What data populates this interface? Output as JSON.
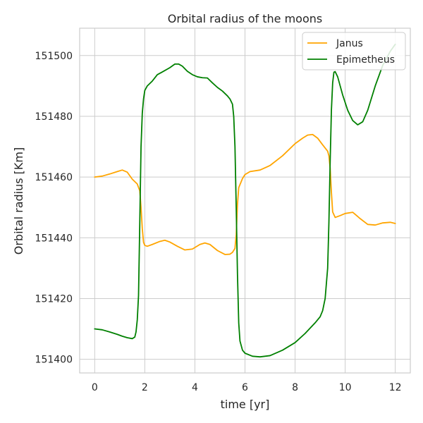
{
  "chart_data": {
    "type": "line",
    "title": "Orbital radius of the moons",
    "xlabel": "time [yr]",
    "ylabel": "Orbital radius [Km]",
    "xlim": [
      -0.6,
      12.6
    ],
    "ylim": [
      151395.5,
      151509
    ],
    "xticks": [
      0,
      2,
      4,
      6,
      8,
      10,
      12
    ],
    "yticks": [
      151400,
      151420,
      151440,
      151460,
      151480,
      151500
    ],
    "grid": true,
    "legend_position": "top-right",
    "series": [
      {
        "name": "Janus",
        "color": "#FFA500",
        "x": [
          0,
          0.3,
          0.6,
          0.9,
          1.1,
          1.3,
          1.5,
          1.7,
          1.8,
          1.85,
          1.9,
          1.95,
          2.0,
          2.1,
          2.3,
          2.6,
          2.8,
          3.0,
          3.3,
          3.6,
          3.9,
          4.2,
          4.4,
          4.6,
          4.9,
          5.2,
          5.4,
          5.5,
          5.6,
          5.65,
          5.7,
          5.75,
          5.8,
          5.9,
          6.0,
          6.2,
          6.6,
          7.0,
          7.5,
          8.0,
          8.3,
          8.5,
          8.7,
          8.9,
          9.1,
          9.3,
          9.35,
          9.4,
          9.45,
          9.5,
          9.6,
          9.8,
          10.0,
          10.3,
          10.6,
          10.9,
          11.2,
          11.5,
          11.8,
          12.0
        ],
        "y": [
          151460,
          151460.3,
          151461,
          151461.8,
          151462.3,
          151461.6,
          151459.3,
          151457.7,
          151455.5,
          151450,
          151443,
          151438.5,
          151437.5,
          151437.2,
          151437.8,
          151438.8,
          151439.2,
          151438.6,
          151437.2,
          151436,
          151436.3,
          151437.8,
          151438.3,
          151437.8,
          151435.8,
          151434.5,
          151434.6,
          151435.2,
          151436.5,
          151441,
          151451,
          151456.5,
          151457.5,
          151459.5,
          151460.8,
          151461.8,
          151462.3,
          151463.8,
          151467,
          151471,
          151472.8,
          151473.8,
          151474,
          151472.8,
          151470.6,
          151468.5,
          151467,
          151463,
          151455,
          151448.5,
          151446.7,
          151447.3,
          151448,
          151448.4,
          151446.3,
          151444.4,
          151444.2,
          151444.9,
          151445.1,
          151444.7
        ]
      },
      {
        "name": "Epimetheus",
        "color": "#008000",
        "x": [
          0,
          0.3,
          0.6,
          0.9,
          1.1,
          1.3,
          1.5,
          1.6,
          1.65,
          1.7,
          1.75,
          1.8,
          1.85,
          1.9,
          1.95,
          2.0,
          2.1,
          2.3,
          2.5,
          2.7,
          3.0,
          3.2,
          3.35,
          3.5,
          3.7,
          3.9,
          4.1,
          4.3,
          4.5,
          4.7,
          4.9,
          5.1,
          5.3,
          5.4,
          5.5,
          5.55,
          5.6,
          5.65,
          5.7,
          5.75,
          5.8,
          5.9,
          6.0,
          6.3,
          6.6,
          7.0,
          7.5,
          8.0,
          8.4,
          8.8,
          9.0,
          9.1,
          9.2,
          9.3,
          9.35,
          9.4,
          9.45,
          9.5,
          9.55,
          9.6,
          9.7,
          9.9,
          10.1,
          10.3,
          10.5,
          10.7,
          10.9,
          11.2,
          11.5,
          11.8,
          12.0
        ],
        "y": [
          151410,
          151409.7,
          151409,
          151408.2,
          151407.6,
          151407.1,
          151406.8,
          151407.3,
          151409,
          151413,
          151421,
          151445,
          151470,
          151481,
          151485.7,
          151488.5,
          151490,
          151491.6,
          151493.7,
          151494.6,
          151496,
          151497.2,
          151497.2,
          151496.5,
          151494.8,
          151493.7,
          151493,
          151492.7,
          151492.6,
          151491,
          151489.5,
          151488.3,
          151486.7,
          151485.7,
          151484,
          151480,
          151470,
          151450,
          151428,
          151412,
          151406,
          151403,
          151402,
          151401,
          151400.8,
          151401.2,
          151403,
          151405.5,
          151408.5,
          151412,
          151414,
          151416,
          151420,
          151430,
          151445,
          151465,
          151482,
          151491,
          151494.5,
          151494.7,
          151493,
          151487,
          151482,
          151478.6,
          151477.2,
          151478.2,
          151482,
          151490,
          151496.8,
          151501.4,
          151503.7
        ]
      }
    ]
  }
}
